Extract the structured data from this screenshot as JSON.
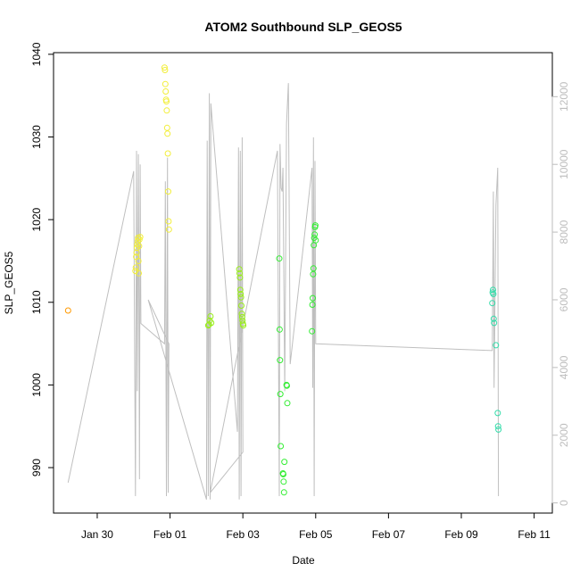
{
  "chart_data": {
    "type": "scatter",
    "title": "ATOM2 Southbound SLP_GEOS5",
    "xlabel": "Date",
    "ylabel": "SLP_GEOS5",
    "x_ticks": [
      "Jan 30",
      "Feb 01",
      "Feb 03",
      "Feb 05",
      "Feb 07",
      "Feb 09",
      "Feb 11"
    ],
    "x_tick_days": [
      1,
      3,
      5,
      7,
      9,
      11,
      13
    ],
    "xlim_days": [
      -0.2,
      13.5
    ],
    "ylim": [
      984.5,
      1040.2
    ],
    "y_ticks": [
      990,
      1000,
      1010,
      1020,
      1030,
      1040
    ],
    "y2lim": [
      -300,
      13300
    ],
    "y2_ticks": [
      0,
      2000,
      4000,
      6000,
      8000,
      10000,
      12000
    ],
    "grid": false,
    "legend": "none",
    "colors": {
      "frame": "#000000",
      "track": "#bfbfbf",
      "right_axis": "#bdbdbd"
    },
    "series": [
      {
        "color": "#ff9900",
        "points": [
          [
            0.2,
            1009.0
          ]
        ]
      },
      {
        "color": "#f2ee3a",
        "points": [
          [
            2.05,
            1013.8
          ],
          [
            2.06,
            1014.2
          ],
          [
            2.07,
            1015.5
          ],
          [
            2.08,
            1016.0
          ],
          [
            2.09,
            1016.6
          ],
          [
            2.1,
            1017.0
          ],
          [
            2.11,
            1017.4
          ],
          [
            2.12,
            1017.8
          ],
          [
            2.13,
            1015.0
          ],
          [
            2.14,
            1013.5
          ],
          [
            2.15,
            1016.8
          ],
          [
            2.16,
            1017.6
          ],
          [
            2.18,
            1017.9
          ],
          [
            2.85,
            1038.4
          ],
          [
            2.86,
            1038.1
          ],
          [
            2.87,
            1036.4
          ],
          [
            2.88,
            1035.5
          ],
          [
            2.89,
            1034.5
          ],
          [
            2.9,
            1034.3
          ],
          [
            2.91,
            1033.2
          ],
          [
            2.92,
            1031.1
          ],
          [
            2.93,
            1030.4
          ],
          [
            2.94,
            1028.0
          ],
          [
            2.95,
            1023.4
          ],
          [
            2.96,
            1019.8
          ],
          [
            2.97,
            1018.8
          ]
        ]
      },
      {
        "color": "#99ee1a",
        "points": [
          [
            4.05,
            1007.2
          ],
          [
            4.07,
            1007.3
          ],
          [
            4.09,
            1007.8
          ],
          [
            4.11,
            1008.3
          ],
          [
            4.13,
            1007.5
          ],
          [
            4.9,
            1014.0
          ],
          [
            4.91,
            1013.5
          ],
          [
            4.92,
            1013.0
          ],
          [
            4.93,
            1011.5
          ],
          [
            4.94,
            1011.0
          ],
          [
            4.95,
            1010.6
          ],
          [
            4.96,
            1009.6
          ],
          [
            4.97,
            1008.6
          ],
          [
            4.98,
            1008.2
          ],
          [
            4.99,
            1007.8
          ],
          [
            5.0,
            1007.4
          ],
          [
            5.01,
            1007.2
          ]
        ]
      },
      {
        "color": "#33ee33",
        "points": [
          [
            6.0,
            1015.3
          ],
          [
            6.01,
            1006.7
          ],
          [
            6.02,
            1003.0
          ],
          [
            6.03,
            998.9
          ],
          [
            6.04,
            992.6
          ],
          [
            6.1,
            989.3
          ],
          [
            6.11,
            989.2
          ],
          [
            6.12,
            988.3
          ],
          [
            6.13,
            987.0
          ],
          [
            6.14,
            990.7
          ],
          [
            6.2,
            1000.0
          ],
          [
            6.21,
            999.9
          ],
          [
            6.22,
            997.8
          ],
          [
            6.9,
            1006.5
          ],
          [
            6.91,
            1009.7
          ],
          [
            6.92,
            1010.5
          ],
          [
            6.93,
            1013.4
          ],
          [
            6.94,
            1014.1
          ],
          [
            6.95,
            1016.9
          ],
          [
            6.96,
            1017.8
          ],
          [
            6.97,
            1018.2
          ],
          [
            6.98,
            1019.1
          ],
          [
            6.99,
            1019.3
          ],
          [
            7.0,
            1017.5
          ]
        ]
      },
      {
        "color": "#33ddaa",
        "points": [
          [
            11.85,
            1009.9
          ],
          [
            11.86,
            1011.2
          ],
          [
            11.87,
            1011.5
          ],
          [
            11.88,
            1011.0
          ],
          [
            11.89,
            1008.0
          ],
          [
            11.9,
            1007.5
          ],
          [
            11.95,
            1004.8
          ],
          [
            12.0,
            996.6
          ],
          [
            12.01,
            995.0
          ],
          [
            12.02,
            994.6
          ]
        ]
      }
    ],
    "secondary_line": {
      "axis": "right",
      "color": "#bfbfbf",
      "points": [
        [
          0.2,
          600
        ],
        [
          2.0,
          9800
        ],
        [
          2.05,
          200
        ],
        [
          2.08,
          10400
        ],
        [
          2.1,
          3300
        ],
        [
          2.13,
          10300
        ],
        [
          2.16,
          700
        ],
        [
          2.18,
          10000
        ],
        [
          2.2,
          5300
        ],
        [
          2.85,
          4700
        ],
        [
          2.87,
          9500
        ],
        [
          2.9,
          200
        ],
        [
          2.93,
          10200
        ],
        [
          2.95,
          300
        ],
        [
          2.97,
          4700
        ],
        [
          2.4,
          6000
        ],
        [
          4.0,
          100
        ],
        [
          4.02,
          10700
        ],
        [
          4.05,
          200
        ],
        [
          4.08,
          12100
        ],
        [
          4.1,
          100
        ],
        [
          4.12,
          11800
        ],
        [
          4.85,
          2100
        ],
        [
          4.88,
          10500
        ],
        [
          4.9,
          100
        ],
        [
          4.93,
          10400
        ],
        [
          4.95,
          200
        ],
        [
          4.98,
          10800
        ],
        [
          5.0,
          1500
        ],
        [
          4.1,
          300
        ],
        [
          5.95,
          10400
        ],
        [
          6.0,
          200
        ],
        [
          6.02,
          10600
        ],
        [
          6.05,
          9300
        ],
        [
          6.08,
          9200
        ],
        [
          6.1,
          9900
        ],
        [
          6.15,
          3300
        ],
        [
          6.2,
          11200
        ],
        [
          6.25,
          12400
        ],
        [
          6.3,
          4100
        ],
        [
          6.9,
          9900
        ],
        [
          6.92,
          3400
        ],
        [
          6.94,
          10800
        ],
        [
          6.96,
          200
        ],
        [
          6.98,
          10100
        ],
        [
          7.0,
          4700
        ],
        [
          11.85,
          4500
        ],
        [
          11.88,
          9200
        ],
        [
          11.9,
          3400
        ],
        [
          11.95,
          8800
        ],
        [
          12.0,
          9900
        ],
        [
          12.02,
          200
        ]
      ]
    }
  }
}
